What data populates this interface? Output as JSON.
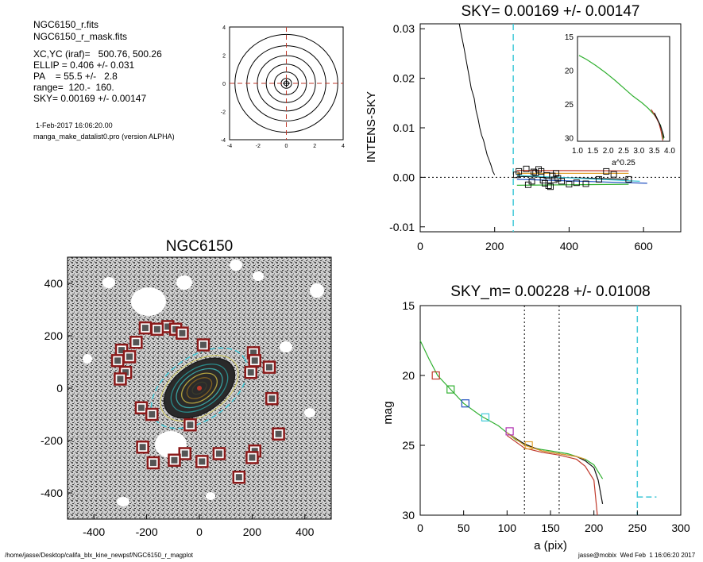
{
  "info": {
    "file1": "NGC6150_r.fits",
    "file2": "NGC6150_r_mask.fits",
    "center": "XC,YC (iraf)=   500.76, 500.26",
    "ellip": "ELLIP = 0.406 +/- 0.031",
    "pa": "PA    = 55.5 +/-   2.8",
    "range": "range=  120.-  160.",
    "sky": "SKY= 0.00169 +/- 0.00147",
    "date": "1-Feb-2017 16:06:20.00",
    "program": "manga_make_datalist0.pro (version ALPHA)"
  },
  "footer": {
    "path": "/home/jasse/Desktop/califa_blx_kine_newpsf/NGC6150_r_magplot",
    "user": "jasse@mobix  Wed Feb  1 16:06:20 2017"
  },
  "colors": {
    "red_dashed": "#c0392b",
    "cyan": "#40c8d8",
    "dark_red_box": "#8b1a1a"
  },
  "chart_data": [
    {
      "id": "contour",
      "type": "line",
      "title": "",
      "xlim": [
        -4,
        4
      ],
      "ylim": [
        -4,
        4
      ],
      "xticks": [
        "-4",
        "-2",
        "0",
        "2",
        "4"
      ],
      "yticks": [
        "-4",
        "-2",
        "0",
        "2",
        "4"
      ],
      "contour_radii": [
        0.35,
        0.8,
        1.35,
        1.95,
        2.65,
        3.45
      ]
    },
    {
      "id": "sky_profile",
      "type": "line",
      "title": "SKY= 0.00169 +/- 0.00147",
      "xlabel": "",
      "ylabel": "INTENS-SKY",
      "xlim": [
        0,
        700
      ],
      "ylim": [
        -0.011,
        0.031
      ],
      "xticks": [
        "0",
        "200",
        "400",
        "600"
      ],
      "yticks": [
        "-0.01",
        "0.00",
        "0.01",
        "0.02",
        "0.03"
      ],
      "vline_x": 250,
      "profile": {
        "x": [
          105,
          110,
          118,
          125,
          130,
          137,
          145,
          150,
          155,
          160,
          165,
          170,
          175,
          180,
          185,
          190,
          195,
          200
        ],
        "y": [
          0.031,
          0.029,
          0.026,
          0.023,
          0.021,
          0.018,
          0.016,
          0.0135,
          0.012,
          0.01,
          0.0085,
          0.0075,
          0.006,
          0.0045,
          0.0035,
          0.0025,
          0.0012,
          0.0005
        ]
      },
      "squares": {
        "x": [
          258,
          265,
          285,
          300,
          305,
          318,
          325,
          335,
          340,
          345,
          350,
          360,
          365,
          370,
          380,
          400,
          420,
          445,
          480,
          500,
          520,
          560,
          290,
          310,
          330,
          355
        ],
        "y": [
          0.0005,
          0.0012,
          0.0017,
          -0.0008,
          0.0011,
          0.0016,
          0.0012,
          -0.0012,
          0.0004,
          -0.0017,
          -0.0019,
          -0.0005,
          0.0008,
          -0.0002,
          -0.0008,
          -0.0014,
          -0.0011,
          -0.0013,
          -0.0004,
          0.0012,
          0.0006,
          -0.0004,
          -0.0015,
          0.0009,
          -0.0006,
          0.0003
        ]
      },
      "lines": [
        {
          "name": "red",
          "color": "#c0392b",
          "x": [
            260,
            560
          ],
          "y": [
            0.0014,
            0.0013
          ]
        },
        {
          "name": "orange",
          "color": "#e0a030",
          "x": [
            260,
            560
          ],
          "y": [
            0.0008,
            0.0008
          ]
        },
        {
          "name": "black",
          "color": "#111111",
          "x": [
            260,
            560
          ],
          "y": [
            0.0002,
            -0.0004
          ]
        },
        {
          "name": "blue",
          "color": "#2050c0",
          "x": [
            260,
            610
          ],
          "y": [
            -0.0004,
            -0.0012
          ]
        },
        {
          "name": "cyan",
          "color": "#40c8d8",
          "x": [
            260,
            590
          ],
          "y": [
            0.0004,
            -0.0008
          ]
        },
        {
          "name": "green",
          "color": "#30b030",
          "x": [
            260,
            560
          ],
          "y": [
            -0.0016,
            -0.0014
          ]
        }
      ]
    },
    {
      "id": "sky_inset",
      "type": "line",
      "xlabel": "a^0.25",
      "xlim": [
        1.0,
        4.0
      ],
      "ylim": [
        15,
        30.5
      ],
      "xticks": [
        "1.0",
        "1.5",
        "2.0",
        "2.5",
        "3.0",
        "3.5",
        "4.0"
      ],
      "yticks": [
        "15",
        "20",
        "25",
        "30"
      ],
      "xtick_values": [
        1.0,
        1.5,
        2.0,
        2.5,
        3.0,
        3.5,
        4.0
      ],
      "ytick_values": [
        15,
        20,
        25,
        30
      ],
      "series": [
        {
          "color": "#30b030",
          "x": [
            1.05,
            1.3,
            1.6,
            1.9,
            2.2,
            2.5,
            2.8,
            3.1,
            3.3,
            3.5,
            3.6,
            3.7,
            3.75,
            3.8
          ],
          "y": [
            17.8,
            18.4,
            19.3,
            20.3,
            21.4,
            22.6,
            23.8,
            24.8,
            25.6,
            26.6,
            27.3,
            28.1,
            28.9,
            30.2
          ]
        },
        {
          "color": "#c0392b",
          "x": [
            3.4,
            3.55,
            3.65,
            3.72,
            3.78
          ],
          "y": [
            25.8,
            26.9,
            27.8,
            29.0,
            30.4
          ]
        },
        {
          "color": "#111111",
          "x": [
            3.5,
            3.6,
            3.7,
            3.78,
            3.82
          ],
          "y": [
            26.3,
            27.2,
            28.2,
            29.3,
            30.0
          ]
        }
      ]
    },
    {
      "id": "galaxy_image",
      "type": "scatter",
      "title": "NGC6150",
      "xlim": [
        -500,
        500
      ],
      "ylim": [
        -500,
        500
      ],
      "xticks": [
        "-400",
        "-200",
        "0",
        "200",
        "400"
      ],
      "yticks": [
        "400",
        "200",
        "0",
        "-200",
        "-400"
      ],
      "xtick_values": [
        -400,
        -200,
        0,
        200,
        400
      ],
      "ytick_values": [
        400,
        200,
        0,
        -200,
        -400
      ],
      "ellipse": {
        "a": 205,
        "b": 120,
        "angle_deg": 34.5
      },
      "isophotes": [
        0.2,
        0.35,
        0.5,
        0.65,
        0.8,
        1.0
      ],
      "boxes": {
        "x": [
          -120,
          -205,
          -160,
          -90,
          -65,
          15,
          -240,
          -295,
          -265,
          -310,
          -280,
          -300,
          -220,
          -180,
          -35,
          205,
          210,
          265,
          195,
          275,
          -215,
          -55,
          -175,
          -95,
          10,
          75,
          210,
          200,
          300,
          150
        ],
        "y": [
          235,
          230,
          225,
          225,
          210,
          165,
          175,
          145,
          120,
          105,
          60,
          35,
          -75,
          -100,
          -140,
          135,
          105,
          80,
          60,
          -40,
          -225,
          -250,
          -285,
          -275,
          -280,
          -250,
          -240,
          -265,
          -175,
          -340
        ]
      }
    },
    {
      "id": "mag_profile",
      "type": "line",
      "title": "SKY_m=  0.00228 +/- 0.01008",
      "xlabel": "a (pix)",
      "ylabel": "mag",
      "xlim": [
        0,
        300
      ],
      "ylim": [
        15,
        30
      ],
      "xticks": [
        "0",
        "50",
        "100",
        "150",
        "200",
        "250",
        "300"
      ],
      "yticks": [
        "15",
        "20",
        "25",
        "30"
      ],
      "xtick_values": [
        0,
        50,
        100,
        150,
        200,
        250,
        300
      ],
      "ytick_values": [
        15,
        20,
        25,
        30
      ],
      "vlines_dotted": [
        120,
        160
      ],
      "vline_cyan": 250,
      "cyan_segment": {
        "x": [
          250,
          272
        ],
        "y": [
          28.7,
          28.7
        ]
      },
      "series": [
        {
          "name": "green",
          "color": "#30b030",
          "x": [
            0,
            10,
            20,
            35,
            50,
            70,
            90,
            100,
            110,
            120,
            130,
            140,
            150,
            160,
            170,
            180,
            190,
            200,
            205,
            210
          ],
          "y": [
            17.5,
            18.8,
            20.0,
            21.0,
            22.0,
            22.9,
            23.6,
            24.1,
            24.6,
            24.9,
            25.2,
            25.3,
            25.4,
            25.5,
            25.6,
            25.8,
            26.0,
            26.4,
            26.9,
            27.4
          ]
        },
        {
          "name": "black",
          "color": "#111111",
          "x": [
            100,
            120,
            140,
            160,
            180,
            190,
            200,
            205,
            210
          ],
          "y": [
            24.1,
            24.9,
            25.4,
            25.6,
            25.8,
            26.1,
            26.6,
            27.5,
            29.2
          ]
        },
        {
          "name": "red",
          "color": "#c0392b",
          "x": [
            100,
            120,
            140,
            160,
            180,
            190,
            200,
            204
          ],
          "y": [
            24.3,
            25.2,
            25.5,
            25.7,
            26.0,
            26.5,
            27.5,
            30
          ]
        },
        {
          "name": "orange",
          "color": "#e0a030",
          "x": [
            100,
            120,
            140,
            160,
            180,
            190
          ],
          "y": [
            24.1,
            25.0,
            25.4,
            25.6,
            25.8,
            26.0
          ]
        }
      ],
      "squares": [
        {
          "x": 18,
          "y": 20.0,
          "color": "#c0392b"
        },
        {
          "x": 35,
          "y": 21.0,
          "color": "#30b030"
        },
        {
          "x": 52,
          "y": 22.0,
          "color": "#2050c0"
        },
        {
          "x": 75,
          "y": 23.0,
          "color": "#40c8d8"
        },
        {
          "x": 103,
          "y": 24.0,
          "color": "#b030b0"
        },
        {
          "x": 125,
          "y": 25.0,
          "color": "#e0a030"
        }
      ]
    }
  ]
}
